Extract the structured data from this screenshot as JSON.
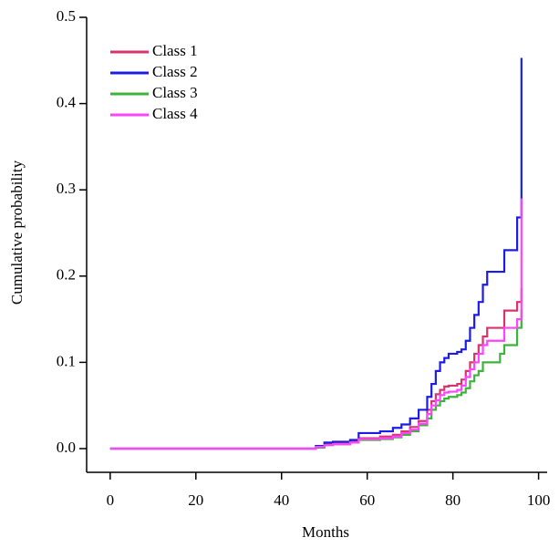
{
  "chart_data": {
    "type": "line",
    "step": true,
    "x_label": "Months",
    "y_label": "Cumulative probability",
    "x": [
      0,
      46,
      48,
      50,
      52,
      56,
      58,
      63,
      66,
      68,
      70,
      72,
      74,
      75,
      76,
      77,
      78,
      79,
      81,
      82,
      83,
      84,
      85,
      86,
      87,
      88,
      91,
      92,
      95,
      96
    ],
    "series": [
      {
        "name": "Class 1",
        "color": "#d8336b",
        "values": [
          0,
          0,
          0.002,
          0.005,
          0.006,
          0.008,
          0.012,
          0.014,
          0.016,
          0.02,
          0.025,
          0.032,
          0.045,
          0.055,
          0.063,
          0.068,
          0.072,
          0.073,
          0.075,
          0.08,
          0.09,
          0.1,
          0.11,
          0.12,
          0.13,
          0.14,
          0.14,
          0.16,
          0.17,
          0.186
        ]
      },
      {
        "name": "Class 2",
        "color": "#1c1ce6",
        "values": [
          0,
          0,
          0.003,
          0.007,
          0.008,
          0.01,
          0.018,
          0.02,
          0.024,
          0.028,
          0.035,
          0.045,
          0.06,
          0.075,
          0.09,
          0.1,
          0.105,
          0.11,
          0.112,
          0.115,
          0.125,
          0.14,
          0.155,
          0.17,
          0.19,
          0.205,
          0.205,
          0.23,
          0.268,
          0.453
        ]
      },
      {
        "name": "Class 3",
        "color": "#3cb43c",
        "values": [
          0,
          0,
          0.001,
          0.004,
          0.005,
          0.007,
          0.01,
          0.011,
          0.013,
          0.016,
          0.02,
          0.027,
          0.035,
          0.045,
          0.05,
          0.055,
          0.058,
          0.06,
          0.062,
          0.065,
          0.07,
          0.078,
          0.085,
          0.09,
          0.1,
          0.1,
          0.11,
          0.12,
          0.14,
          0.162
        ]
      },
      {
        "name": "Class 4",
        "color": "#ff44ff",
        "values": [
          0,
          0,
          0.002,
          0.004,
          0.005,
          0.007,
          0.011,
          0.012,
          0.014,
          0.018,
          0.022,
          0.029,
          0.04,
          0.05,
          0.056,
          0.062,
          0.065,
          0.066,
          0.068,
          0.073,
          0.083,
          0.092,
          0.1,
          0.11,
          0.12,
          0.125,
          0.125,
          0.14,
          0.15,
          0.29
        ]
      }
    ],
    "xlim": [
      -5.5,
      102
    ],
    "xticks": [
      0,
      20,
      40,
      60,
      80,
      100
    ],
    "ylim": [
      -0.0275,
      0.5
    ],
    "yticks": [
      {
        "value": 0,
        "label": "0.0"
      },
      0.1,
      0.2,
      0.3,
      0.4,
      0.5
    ],
    "legend": "upper-left"
  }
}
